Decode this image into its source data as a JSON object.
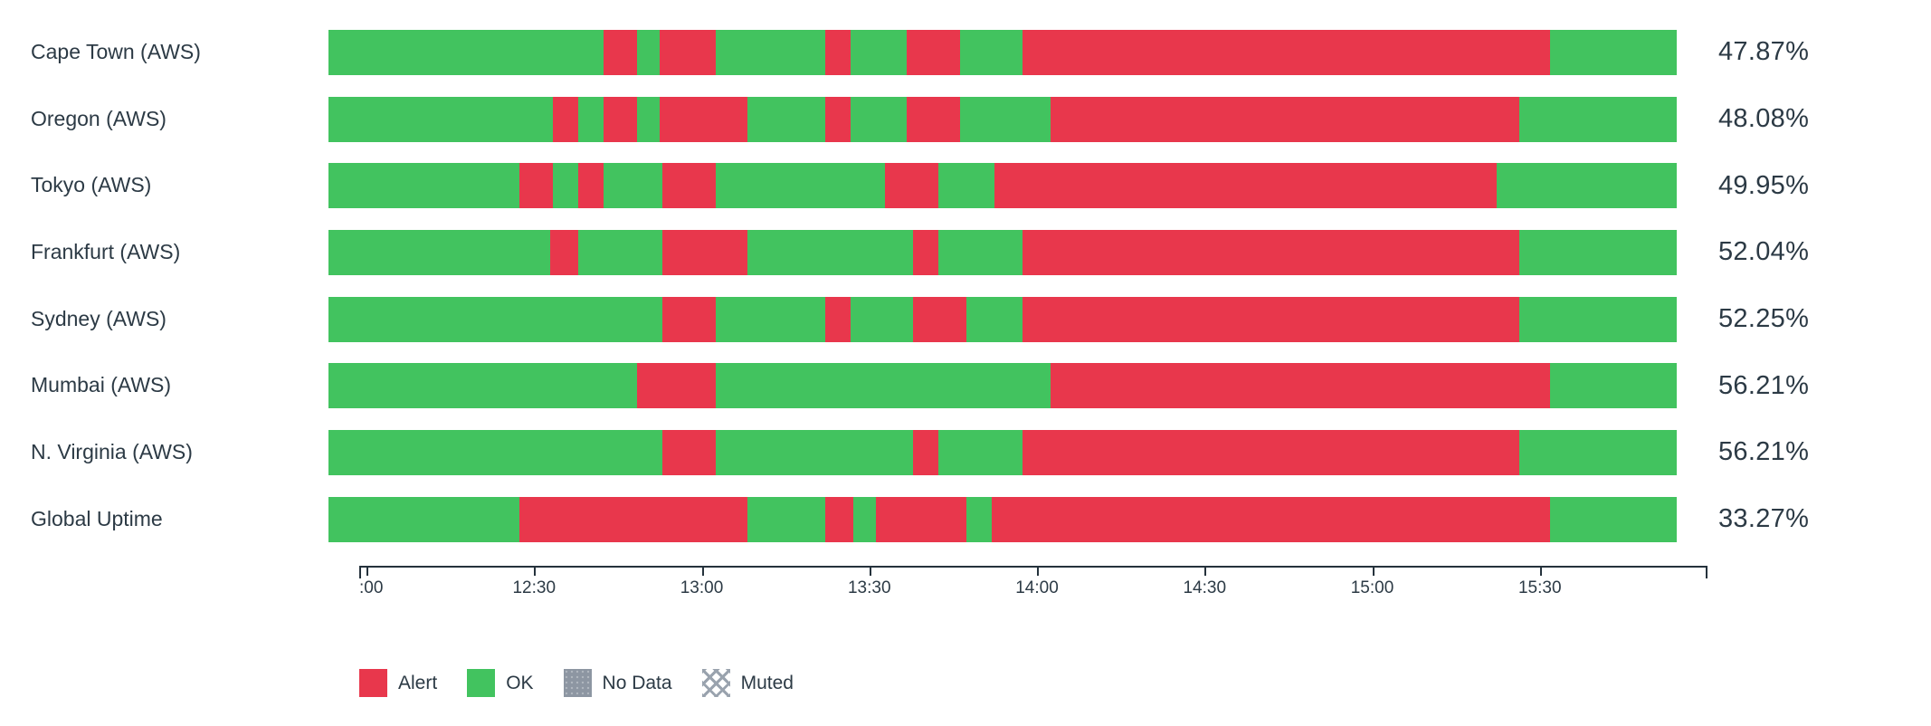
{
  "colors": {
    "alert": "#e8374c",
    "ok": "#42c35f",
    "no_data": "#8d96a2",
    "muted_hatch": "#9aa3ae",
    "text": "#2c3a45",
    "axis": "#25323c"
  },
  "chart_data": {
    "type": "heatmap",
    "subtype": "status-timeline-horizontal-bars",
    "title": "",
    "time_axis": {
      "start": "12:00",
      "end": "16:00",
      "total_minutes": 240,
      "ticks": [
        {
          "label": ":00",
          "min": 0
        },
        {
          "label": "12:30",
          "min": 30
        },
        {
          "label": "13:00",
          "min": 60
        },
        {
          "label": "13:30",
          "min": 90
        },
        {
          "label": "14:00",
          "min": 120
        },
        {
          "label": "14:30",
          "min": 150
        },
        {
          "label": "15:00",
          "min": 180
        },
        {
          "label": "15:30",
          "min": 210
        }
      ]
    },
    "rows": [
      {
        "label": "Cape Town (AWS)",
        "uptime": "47.87%",
        "segments": [
          {
            "status": "ok",
            "start": 0,
            "end": 49
          },
          {
            "status": "alert",
            "start": 49,
            "end": 55
          },
          {
            "status": "ok",
            "start": 55,
            "end": 59
          },
          {
            "status": "alert",
            "start": 59,
            "end": 69
          },
          {
            "status": "ok",
            "start": 69,
            "end": 88.5
          },
          {
            "status": "alert",
            "start": 88.5,
            "end": 93
          },
          {
            "status": "ok",
            "start": 93,
            "end": 103
          },
          {
            "status": "alert",
            "start": 103,
            "end": 112.5
          },
          {
            "status": "ok",
            "start": 112.5,
            "end": 123.5
          },
          {
            "status": "alert",
            "start": 123.5,
            "end": 217.5
          },
          {
            "status": "ok",
            "start": 217.5,
            "end": 240
          }
        ]
      },
      {
        "label": "Oregon (AWS)",
        "uptime": "48.08%",
        "segments": [
          {
            "status": "ok",
            "start": 0,
            "end": 40
          },
          {
            "status": "alert",
            "start": 40,
            "end": 44.5
          },
          {
            "status": "ok",
            "start": 44.5,
            "end": 49
          },
          {
            "status": "alert",
            "start": 49,
            "end": 55
          },
          {
            "status": "ok",
            "start": 55,
            "end": 59
          },
          {
            "status": "alert",
            "start": 59,
            "end": 74.5
          },
          {
            "status": "ok",
            "start": 74.5,
            "end": 88.5
          },
          {
            "status": "alert",
            "start": 88.5,
            "end": 93
          },
          {
            "status": "ok",
            "start": 93,
            "end": 103
          },
          {
            "status": "alert",
            "start": 103,
            "end": 112.5
          },
          {
            "status": "ok",
            "start": 112.5,
            "end": 128.5
          },
          {
            "status": "alert",
            "start": 128.5,
            "end": 212
          },
          {
            "status": "ok",
            "start": 212,
            "end": 240
          }
        ]
      },
      {
        "label": "Tokyo (AWS)",
        "uptime": "49.95%",
        "segments": [
          {
            "status": "ok",
            "start": 0,
            "end": 34
          },
          {
            "status": "alert",
            "start": 34,
            "end": 40
          },
          {
            "status": "ok",
            "start": 40,
            "end": 44.5
          },
          {
            "status": "alert",
            "start": 44.5,
            "end": 49
          },
          {
            "status": "ok",
            "start": 49,
            "end": 59.5
          },
          {
            "status": "alert",
            "start": 59.5,
            "end": 69
          },
          {
            "status": "ok",
            "start": 69,
            "end": 99
          },
          {
            "status": "alert",
            "start": 99,
            "end": 108.5
          },
          {
            "status": "ok",
            "start": 108.5,
            "end": 118.5
          },
          {
            "status": "alert",
            "start": 118.5,
            "end": 208
          },
          {
            "status": "ok",
            "start": 208,
            "end": 240
          }
        ]
      },
      {
        "label": "Frankfurt (AWS)",
        "uptime": "52.04%",
        "segments": [
          {
            "status": "ok",
            "start": 0,
            "end": 39.5
          },
          {
            "status": "alert",
            "start": 39.5,
            "end": 44.5
          },
          {
            "status": "ok",
            "start": 44.5,
            "end": 59.5
          },
          {
            "status": "alert",
            "start": 59.5,
            "end": 74.5
          },
          {
            "status": "ok",
            "start": 74.5,
            "end": 104
          },
          {
            "status": "alert",
            "start": 104,
            "end": 108.5
          },
          {
            "status": "ok",
            "start": 108.5,
            "end": 123.5
          },
          {
            "status": "alert",
            "start": 123.5,
            "end": 212
          },
          {
            "status": "ok",
            "start": 212,
            "end": 240
          }
        ]
      },
      {
        "label": "Sydney (AWS)",
        "uptime": "52.25%",
        "segments": [
          {
            "status": "ok",
            "start": 0,
            "end": 59.5
          },
          {
            "status": "alert",
            "start": 59.5,
            "end": 69
          },
          {
            "status": "ok",
            "start": 69,
            "end": 88.5
          },
          {
            "status": "alert",
            "start": 88.5,
            "end": 93
          },
          {
            "status": "ok",
            "start": 93,
            "end": 104
          },
          {
            "status": "alert",
            "start": 104,
            "end": 113.5
          },
          {
            "status": "ok",
            "start": 113.5,
            "end": 123.5
          },
          {
            "status": "alert",
            "start": 123.5,
            "end": 212
          },
          {
            "status": "ok",
            "start": 212,
            "end": 240
          }
        ]
      },
      {
        "label": "Mumbai (AWS)",
        "uptime": "56.21%",
        "segments": [
          {
            "status": "ok",
            "start": 0,
            "end": 55
          },
          {
            "status": "alert",
            "start": 55,
            "end": 69
          },
          {
            "status": "ok",
            "start": 69,
            "end": 128.5
          },
          {
            "status": "alert",
            "start": 128.5,
            "end": 217.5
          },
          {
            "status": "ok",
            "start": 217.5,
            "end": 240
          }
        ]
      },
      {
        "label": "N. Virginia (AWS)",
        "uptime": "56.21%",
        "segments": [
          {
            "status": "ok",
            "start": 0,
            "end": 59.5
          },
          {
            "status": "alert",
            "start": 59.5,
            "end": 69
          },
          {
            "status": "ok",
            "start": 69,
            "end": 104
          },
          {
            "status": "alert",
            "start": 104,
            "end": 108.5
          },
          {
            "status": "ok",
            "start": 108.5,
            "end": 123.5
          },
          {
            "status": "alert",
            "start": 123.5,
            "end": 212
          },
          {
            "status": "ok",
            "start": 212,
            "end": 240
          }
        ]
      },
      {
        "label": "Global Uptime",
        "uptime": "33.27%",
        "segments": [
          {
            "status": "ok",
            "start": 0,
            "end": 34
          },
          {
            "status": "alert",
            "start": 34,
            "end": 74.5
          },
          {
            "status": "ok",
            "start": 74.5,
            "end": 88.5
          },
          {
            "status": "alert",
            "start": 88.5,
            "end": 93.5
          },
          {
            "status": "ok",
            "start": 93.5,
            "end": 97.5
          },
          {
            "status": "alert",
            "start": 97.5,
            "end": 113.5
          },
          {
            "status": "ok",
            "start": 113.5,
            "end": 118
          },
          {
            "status": "alert",
            "start": 118,
            "end": 217.5
          },
          {
            "status": "ok",
            "start": 217.5,
            "end": 240
          }
        ]
      }
    ],
    "legend": [
      {
        "label": "Alert",
        "status": "alert"
      },
      {
        "label": "OK",
        "status": "ok"
      },
      {
        "label": "No Data",
        "status": "no_data"
      },
      {
        "label": "Muted",
        "status": "muted"
      }
    ]
  }
}
